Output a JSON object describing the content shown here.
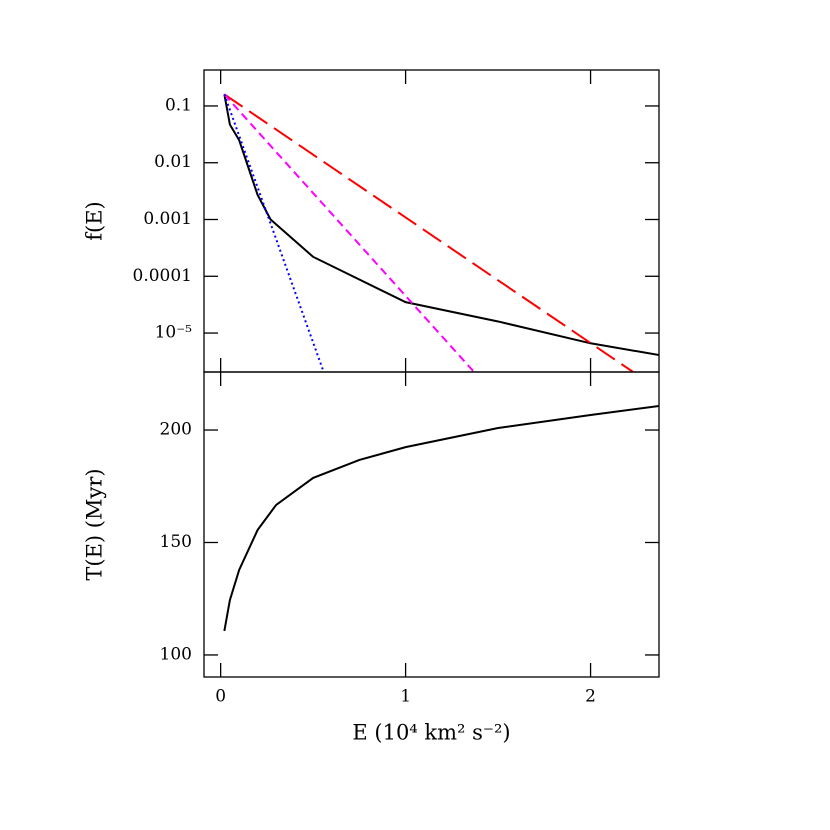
{
  "chart_data": [
    {
      "type": "line",
      "log_y": true,
      "ylabel": "f(E)",
      "xlim": [
        -0.09,
        2.37
      ],
      "xticks": [
        0,
        1,
        2
      ],
      "ylim": [
        2.06e-06,
        0.43
      ],
      "yticks": [
        0.1,
        0.01,
        0.001,
        0.0001,
        {
          "value": 1e-05,
          "label": "10⁻⁵"
        }
      ],
      "series": [
        {
          "color": "#000000",
          "linestyle": "solid",
          "x": [
            0.02,
            0.05,
            0.1,
            0.2,
            0.27,
            0.5,
            1,
            1.5,
            2,
            2.37
          ],
          "values": [
            0.16,
            0.047,
            0.025,
            0.0027,
            0.001,
            0.00022,
            3.5e-05,
            1.6e-05,
            6.6e-06,
            4.1e-06
          ]
        },
        {
          "color": "#ff0000",
          "linestyle": "long-dash",
          "x": [
            0.02,
            2.23
          ],
          "values": [
            0.16,
            2.06e-06
          ]
        },
        {
          "color": "#ff00ff",
          "linestyle": "dash",
          "x": [
            0.02,
            1.37
          ],
          "values": [
            0.16,
            2.06e-06
          ]
        },
        {
          "color": "#0000ff",
          "linestyle": "dotted",
          "x": [
            0.02,
            0.557
          ],
          "values": [
            0.16,
            2.06e-06
          ]
        }
      ]
    },
    {
      "type": "line",
      "log_y": false,
      "ylabel": "T(E) (Myr)",
      "xlabel": "E (10⁴ km² s⁻²)",
      "xlim": [
        -0.09,
        2.37
      ],
      "xticks": [
        0,
        1,
        2
      ],
      "ylim": [
        90.2,
        225.8
      ],
      "yticks": [
        100,
        150,
        200
      ],
      "series": [
        {
          "color": "#000000",
          "linestyle": "solid",
          "x": [
            0.02,
            0.05,
            0.1,
            0.2,
            0.3,
            0.5,
            0.75,
            1,
            1.5,
            2,
            2.37
          ],
          "values": [
            110.7,
            124.4,
            137.8,
            155.6,
            166.7,
            178.7,
            186.7,
            192.4,
            200.9,
            206.7,
            210.7
          ]
        }
      ]
    }
  ]
}
